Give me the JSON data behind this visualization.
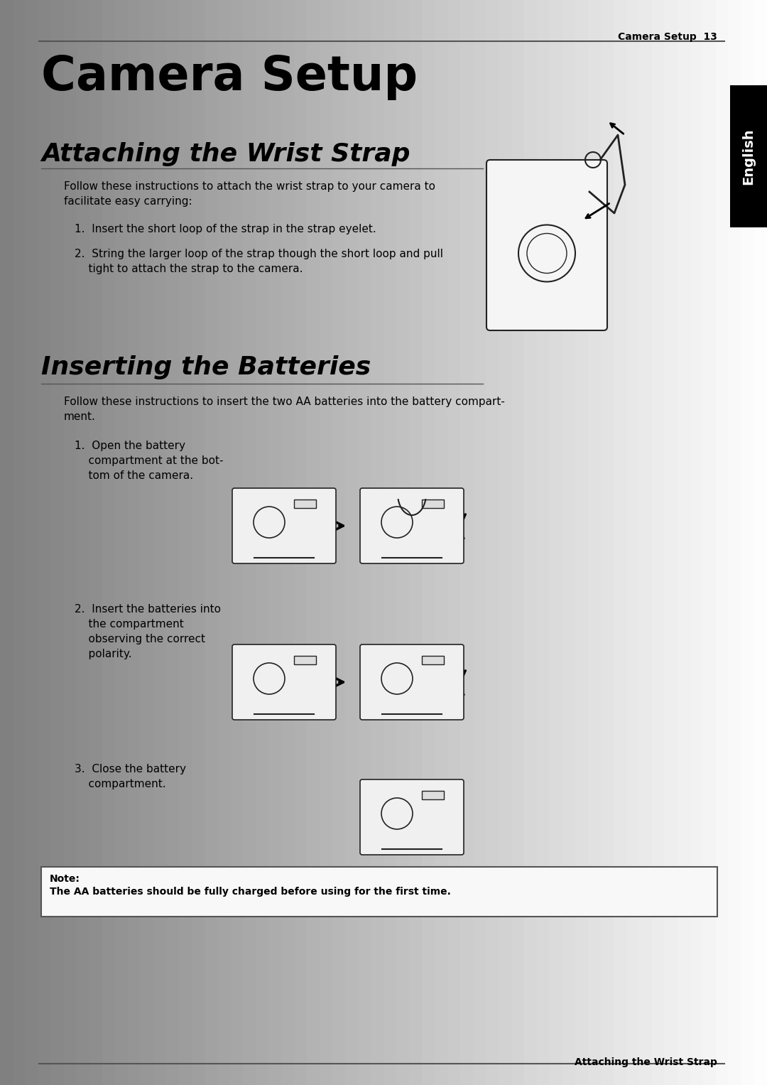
{
  "page_title": "Camera Setup",
  "header_text": "Camera Setup  13",
  "section1_title": "Attaching the Wrist Strap",
  "section1_intro": "Follow these instructions to attach the wrist strap to your camera to\nfacilitate easy carrying:",
  "section1_steps": [
    "1.  Insert the short loop of the strap in the strap eyelet.",
    "2.  String the larger loop of the strap though the short loop and pull\n    tight to attach the strap to the camera."
  ],
  "section2_title": "Inserting the Batteries",
  "section2_intro": "Follow these instructions to insert the two AA batteries into the battery compart-\nment.",
  "section2_steps": [
    "1.  Open the battery\n    compartment at the bot-\n    tom of the camera.",
    "2.  Insert the batteries into\n    the compartment\n    observing the correct\n    polarity.",
    "3.  Close the battery\n    compartment."
  ],
  "note_label": "Note:",
  "note_text": "The AA batteries should be fully charged before using for the first time.",
  "footer_text": "Attaching the Wrist Strap",
  "tab_text": "English",
  "bg_color_left": "#b0b0b0",
  "bg_color_right": "#ffffff",
  "tab_bg": "#000000",
  "tab_text_color": "#ffffff",
  "border_color": "#555555"
}
